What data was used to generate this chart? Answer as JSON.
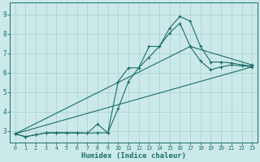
{
  "xlabel": "Humidex (Indice chaleur)",
  "bg_color": "#cce9e9",
  "grid_color": "#aad4d4",
  "line_color": "#1a6e6a",
  "xlim": [
    -0.5,
    23.5
  ],
  "ylim": [
    2.4,
    9.6
  ],
  "xticks": [
    0,
    1,
    2,
    3,
    4,
    5,
    6,
    7,
    8,
    9,
    10,
    11,
    12,
    13,
    14,
    15,
    16,
    17,
    18,
    19,
    20,
    21,
    22,
    23
  ],
  "yticks": [
    3,
    4,
    5,
    6,
    7,
    8,
    9
  ],
  "line1_x": [
    0,
    1,
    2,
    3,
    4,
    5,
    6,
    7,
    8,
    9,
    10,
    11,
    12,
    13,
    14,
    15,
    16,
    17,
    18,
    19,
    20,
    21,
    22,
    23
  ],
  "line1_y": [
    2.85,
    2.7,
    2.8,
    2.9,
    2.9,
    2.9,
    2.9,
    2.88,
    2.9,
    2.9,
    5.55,
    6.25,
    6.25,
    7.35,
    7.35,
    8.3,
    8.9,
    8.65,
    7.35,
    6.55,
    6.55,
    6.5,
    6.4,
    6.35
  ],
  "line2_x": [
    0,
    1,
    2,
    3,
    4,
    5,
    6,
    7,
    8,
    9,
    10,
    11,
    12,
    13,
    14,
    15,
    16,
    17,
    18,
    19,
    20,
    21,
    22,
    23
  ],
  "line2_y": [
    2.85,
    2.7,
    2.8,
    2.9,
    2.9,
    2.9,
    2.9,
    2.88,
    3.35,
    2.9,
    4.15,
    5.55,
    6.25,
    6.8,
    7.35,
    8.05,
    8.55,
    7.35,
    6.6,
    6.15,
    6.3,
    6.4,
    6.35,
    6.3
  ],
  "line3_x": [
    0,
    17,
    23
  ],
  "line3_y": [
    2.85,
    7.35,
    6.4
  ],
  "line4_x": [
    0,
    23
  ],
  "line4_y": [
    2.85,
    6.3
  ]
}
